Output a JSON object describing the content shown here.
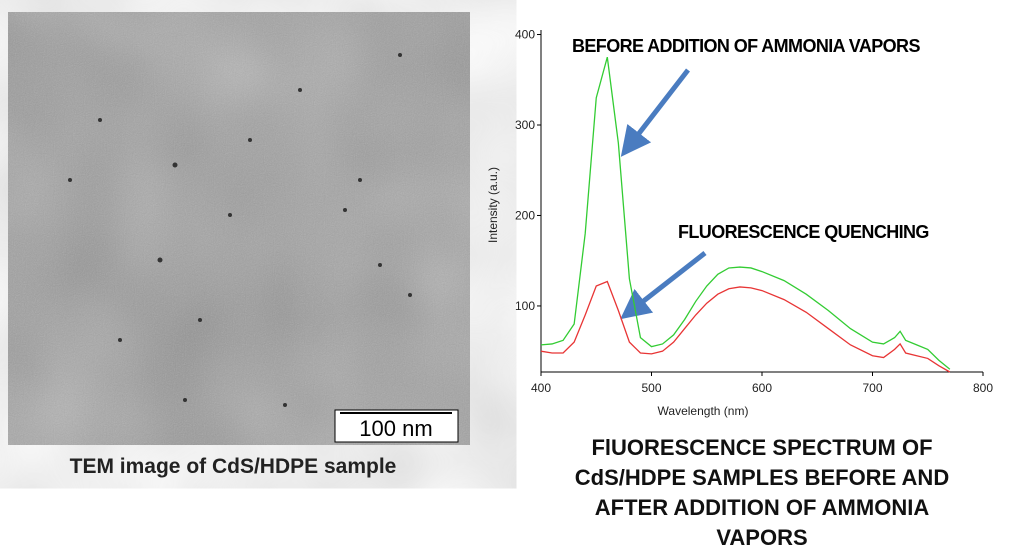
{
  "tem_image": {
    "scale_bar": "100 nm",
    "caption": "TEM image of CdS/HDPE sample"
  },
  "caption": "FlUORESCENCE SPECTRUM OF CdS/HDPE SAMPLES BEFORE AND AFTER ADDITION OF AMMONIA VAPORS",
  "chart_data": {
    "type": "line",
    "x_label": "Wavelength (nm)",
    "y_label": "Intensity (a.u.)",
    "annotations": [
      "BEFORE ADDITION OF AMMONIA VAPORS",
      "FLUORESCENCE QUENCHING"
    ],
    "x": [
      400,
      410,
      420,
      430,
      440,
      450,
      460,
      470,
      480,
      490,
      500,
      510,
      520,
      530,
      540,
      550,
      560,
      570,
      580,
      590,
      600,
      620,
      640,
      660,
      680,
      700,
      710,
      720,
      725,
      730,
      740,
      750,
      760,
      770
    ],
    "series": [
      {
        "color": "#33cc33",
        "values": [
          57,
          58,
          62,
          80,
          180,
          330,
          375,
          280,
          130,
          65,
          55,
          58,
          68,
          85,
          105,
          122,
          135,
          142,
          143,
          142,
          138,
          128,
          113,
          95,
          75,
          60,
          58,
          65,
          72,
          62,
          57,
          52,
          40,
          30
        ]
      },
      {
        "color": "#e83535",
        "values": [
          50,
          48,
          48,
          60,
          90,
          122,
          127,
          95,
          60,
          48,
          47,
          50,
          60,
          75,
          90,
          103,
          113,
          119,
          121,
          120,
          117,
          107,
          93,
          75,
          57,
          45,
          43,
          52,
          58,
          48,
          45,
          42,
          34,
          27
        ]
      }
    ],
    "xlim": [
      400,
      800
    ],
    "xticks": [
      400,
      500,
      600,
      700,
      800
    ],
    "ylim": [
      27,
      405
    ],
    "yticks": [
      100,
      200,
      300,
      400
    ]
  }
}
